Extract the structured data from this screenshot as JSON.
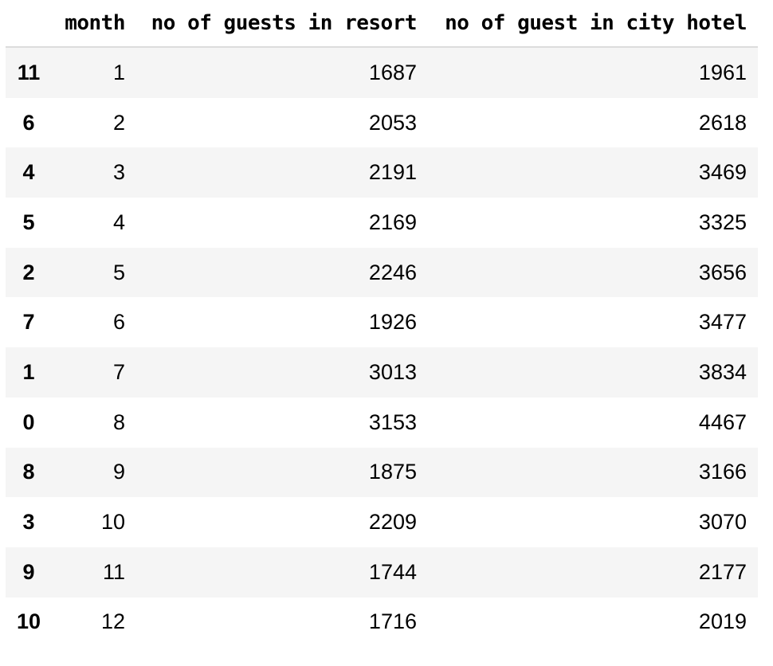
{
  "table": {
    "columns": [
      "month",
      "no of guests in resort",
      "no of guest in city hotel"
    ],
    "index_header": "",
    "rows": [
      {
        "index": "11",
        "month": "1",
        "resort": "1687",
        "city": "1961"
      },
      {
        "index": "6",
        "month": "2",
        "resort": "2053",
        "city": "2618"
      },
      {
        "index": "4",
        "month": "3",
        "resort": "2191",
        "city": "3469"
      },
      {
        "index": "5",
        "month": "4",
        "resort": "2169",
        "city": "3325"
      },
      {
        "index": "2",
        "month": "5",
        "resort": "2246",
        "city": "3656"
      },
      {
        "index": "7",
        "month": "6",
        "resort": "1926",
        "city": "3477"
      },
      {
        "index": "1",
        "month": "7",
        "resort": "3013",
        "city": "3834"
      },
      {
        "index": "0",
        "month": "8",
        "resort": "3153",
        "city": "4467"
      },
      {
        "index": "8",
        "month": "9",
        "resort": "1875",
        "city": "3166"
      },
      {
        "index": "3",
        "month": "10",
        "resort": "2209",
        "city": "3070"
      },
      {
        "index": "9",
        "month": "11",
        "resort": "1744",
        "city": "2177"
      },
      {
        "index": "10",
        "month": "12",
        "resort": "1716",
        "city": "2019"
      }
    ]
  }
}
